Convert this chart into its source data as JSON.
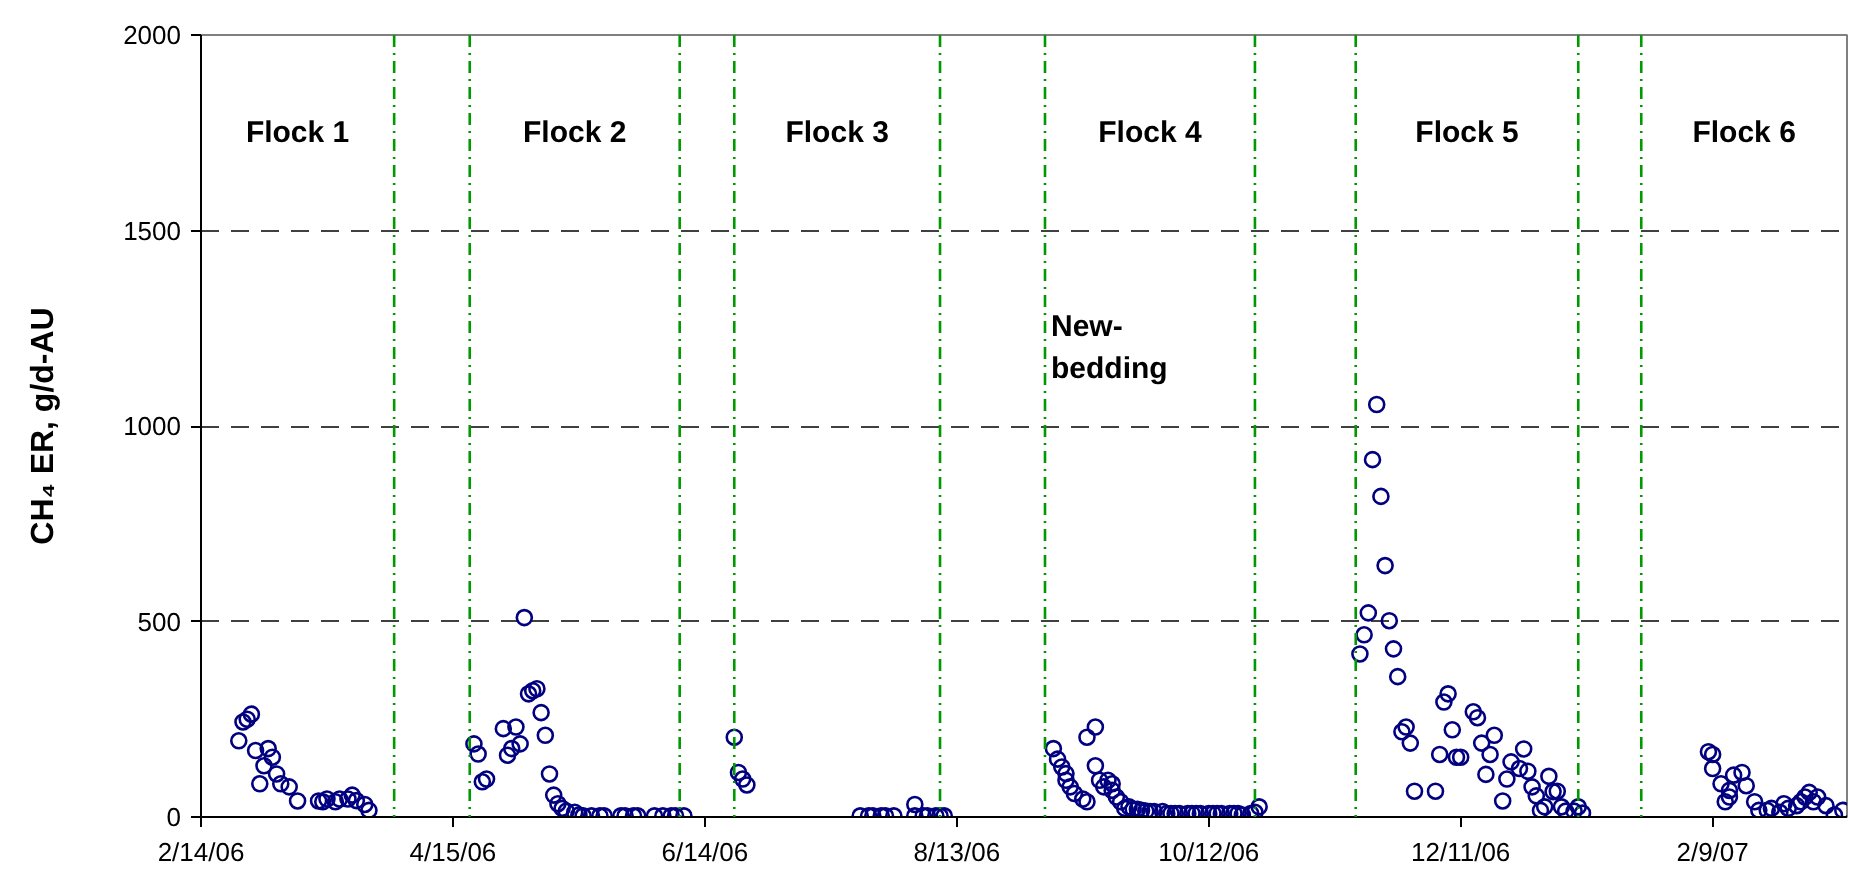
{
  "chart_data": {
    "type": "scatter",
    "ylabel": "CH₄ ER, g/d-AU",
    "color": "#000080",
    "marker": "circle",
    "grid": "y",
    "x": [
      "2006-02-23",
      "2006-02-24",
      "2006-02-25",
      "2006-02-26",
      "2006-02-27",
      "2006-02-28",
      "2006-03-01",
      "2006-03-02",
      "2006-03-03",
      "2006-03-04",
      "2006-03-05",
      "2006-03-07",
      "2006-03-09",
      "2006-03-14",
      "2006-03-15",
      "2006-03-16",
      "2006-03-18",
      "2006-03-19",
      "2006-03-21",
      "2006-03-22",
      "2006-03-23",
      "2006-03-25",
      "2006-03-26",
      "2006-04-20",
      "2006-04-21",
      "2006-04-22",
      "2006-04-23",
      "2006-04-27",
      "2006-04-28",
      "2006-04-29",
      "2006-04-30",
      "2006-05-01",
      "2006-05-02",
      "2006-05-03",
      "2006-05-04",
      "2006-05-05",
      "2006-05-06",
      "2006-05-07",
      "2006-05-08",
      "2006-05-09",
      "2006-05-10",
      "2006-05-11",
      "2006-05-12",
      "2006-05-14",
      "2006-05-15",
      "2006-05-16",
      "2006-05-18",
      "2006-05-20",
      "2006-05-21",
      "2006-05-25",
      "2006-05-26",
      "2006-05-28",
      "2006-05-29",
      "2006-06-02",
      "2006-06-04",
      "2006-06-06",
      "2006-06-07",
      "2006-06-09",
      "2006-06-21",
      "2006-06-22",
      "2006-06-23",
      "2006-06-24",
      "2006-07-21",
      "2006-07-23",
      "2006-07-24",
      "2006-07-26",
      "2006-07-27",
      "2006-07-29",
      "2006-08-03",
      "2006-08-03",
      "2006-08-05",
      "2006-08-06",
      "2006-08-08",
      "2006-08-09",
      "2006-08-10",
      "2006-09-05",
      "2006-09-06",
      "2006-09-07",
      "2006-09-08",
      "2006-09-08",
      "2006-09-09",
      "2006-09-10",
      "2006-09-12",
      "2006-09-13",
      "2006-09-13",
      "2006-09-15",
      "2006-09-15",
      "2006-09-16",
      "2006-09-17",
      "2006-09-18",
      "2006-09-19",
      "2006-09-19",
      "2006-09-20",
      "2006-09-21",
      "2006-09-22",
      "2006-09-23",
      "2006-09-24",
      "2006-09-25",
      "2006-09-26",
      "2006-09-27",
      "2006-09-28",
      "2006-09-29",
      "2006-10-01",
      "2006-10-02",
      "2006-10-03",
      "2006-10-04",
      "2006-10-05",
      "2006-10-07",
      "2006-10-08",
      "2006-10-09",
      "2006-10-10",
      "2006-10-12",
      "2006-10-13",
      "2006-10-14",
      "2006-10-15",
      "2006-10-17",
      "2006-10-18",
      "2006-10-19",
      "2006-10-20",
      "2006-10-22",
      "2006-10-23",
      "2006-10-24",
      "2006-11-17",
      "2006-11-18",
      "2006-11-19",
      "2006-11-20",
      "2006-11-21",
      "2006-11-22",
      "2006-11-23",
      "2006-11-24",
      "2006-11-25",
      "2006-11-26",
      "2006-11-27",
      "2006-11-28",
      "2006-11-29",
      "2006-11-30",
      "2006-12-05",
      "2006-12-06",
      "2006-12-07",
      "2006-12-08",
      "2006-12-09",
      "2006-12-10",
      "2006-12-11",
      "2006-12-14",
      "2006-12-15",
      "2006-12-16",
      "2006-12-17",
      "2006-12-18",
      "2006-12-19",
      "2006-12-21",
      "2006-12-22",
      "2006-12-23",
      "2006-12-25",
      "2006-12-26",
      "2006-12-27",
      "2006-12-28",
      "2006-12-29",
      "2006-12-30",
      "2006-12-31",
      "2007-01-01",
      "2007-01-02",
      "2007-01-03",
      "2007-01-04",
      "2007-01-05",
      "2007-01-07",
      "2007-01-08",
      "2007-01-09",
      "2007-02-08",
      "2007-02-09",
      "2007-02-09",
      "2007-02-11",
      "2007-02-12",
      "2007-02-13",
      "2007-02-13",
      "2007-02-14",
      "2007-02-16",
      "2007-02-17",
      "2007-02-19",
      "2007-02-20",
      "2007-02-22",
      "2007-02-23",
      "2007-02-25",
      "2007-02-26",
      "2007-02-27",
      "2007-03-01",
      "2007-03-02",
      "2007-03-03",
      "2007-03-04",
      "2007-03-05",
      "2007-03-06",
      "2007-03-08",
      "2007-03-10",
      "2007-03-12"
    ],
    "values": [
      195,
      243,
      250,
      263,
      170,
      85,
      131,
      175,
      153,
      110,
      85,
      77,
      41,
      41,
      39,
      46,
      39,
      46,
      46,
      56,
      42,
      32,
      17,
      187,
      161,
      90,
      97,
      226,
      158,
      175,
      230,
      187,
      510,
      315,
      323,
      328,
      267,
      209,
      110,
      56,
      34,
      22,
      15,
      12,
      5,
      3,
      3,
      3,
      3,
      3,
      3,
      3,
      3,
      3,
      3,
      3,
      3,
      3,
      204,
      114,
      97,
      82,
      3,
      3,
      3,
      3,
      3,
      3,
      32,
      3,
      3,
      3,
      3,
      3,
      3,
      175,
      148,
      128,
      111,
      94,
      77,
      60,
      46,
      39,
      204,
      230,
      131,
      94,
      77,
      94,
      85,
      68,
      51,
      39,
      22,
      26,
      20,
      20,
      17,
      15,
      14,
      14,
      14,
      9,
      9,
      9,
      9,
      9,
      9,
      9,
      9,
      9,
      9,
      9,
      9,
      9,
      9,
      9,
      5,
      9,
      12,
      26,
      417,
      466,
      522,
      914,
      1055,
      820,
      643,
      502,
      430,
      359,
      218,
      230,
      189,
      66,
      66,
      160,
      294,
      315,
      223,
      153,
      153,
      269,
      254,
      189,
      109,
      160,
      209,
      41,
      97,
      141,
      124,
      174,
      117,
      77,
      54,
      17,
      26,
      104,
      65,
      66,
      26,
      15,
      15,
      26,
      10,
      167,
      160,
      124,
      85,
      39,
      51,
      68,
      107,
      114,
      80,
      39,
      17,
      17,
      22,
      12,
      34,
      22,
      29,
      39,
      51,
      63,
      39,
      51,
      29,
      5,
      17
    ],
    "xlim": [
      "2006-02-14",
      "2007-03-13"
    ],
    "xticks": [
      {
        "value": "2006-02-14",
        "label": "2/14/06"
      },
      {
        "value": "2006-04-15",
        "label": "4/15/06"
      },
      {
        "value": "2006-06-14",
        "label": "6/14/06"
      },
      {
        "value": "2006-08-13",
        "label": "8/13/06"
      },
      {
        "value": "2006-10-12",
        "label": "10/12/06"
      },
      {
        "value": "2006-12-11",
        "label": "12/11/06"
      },
      {
        "value": "2007-02-09",
        "label": "2/9/07"
      }
    ],
    "ylim": [
      0,
      2000
    ],
    "yticks": [
      0,
      500,
      1000,
      1500,
      2000
    ],
    "ref_lines": [
      {
        "axis": "x",
        "value": "2006-04-01",
        "color": "#009900",
        "line_style": "dashdot"
      },
      {
        "axis": "x",
        "value": "2006-04-19",
        "color": "#009900",
        "line_style": "dashdot"
      },
      {
        "axis": "x",
        "value": "2006-06-08",
        "color": "#009900",
        "line_style": "dashdot"
      },
      {
        "axis": "x",
        "value": "2006-06-21",
        "color": "#009900",
        "line_style": "dashdot"
      },
      {
        "axis": "x",
        "value": "2006-08-09",
        "color": "#009900",
        "line_style": "dashdot"
      },
      {
        "axis": "x",
        "value": "2006-09-03",
        "color": "#009900",
        "line_style": "dashdot",
        "label": "New-\nbedding"
      },
      {
        "axis": "x",
        "value": "2006-10-23",
        "color": "#009900",
        "line_style": "dashdot"
      },
      {
        "axis": "x",
        "value": "2006-11-16",
        "color": "#009900",
        "line_style": "dashdot"
      },
      {
        "axis": "x",
        "value": "2007-01-08",
        "color": "#009900",
        "line_style": "dashdot"
      },
      {
        "axis": "x",
        "value": "2007-01-23",
        "color": "#009900",
        "line_style": "dashdot"
      }
    ],
    "annotations": [
      "Flock 1",
      "Flock 2",
      "Flock 3",
      "Flock 4",
      "Flock 5",
      "Flock 6"
    ]
  }
}
